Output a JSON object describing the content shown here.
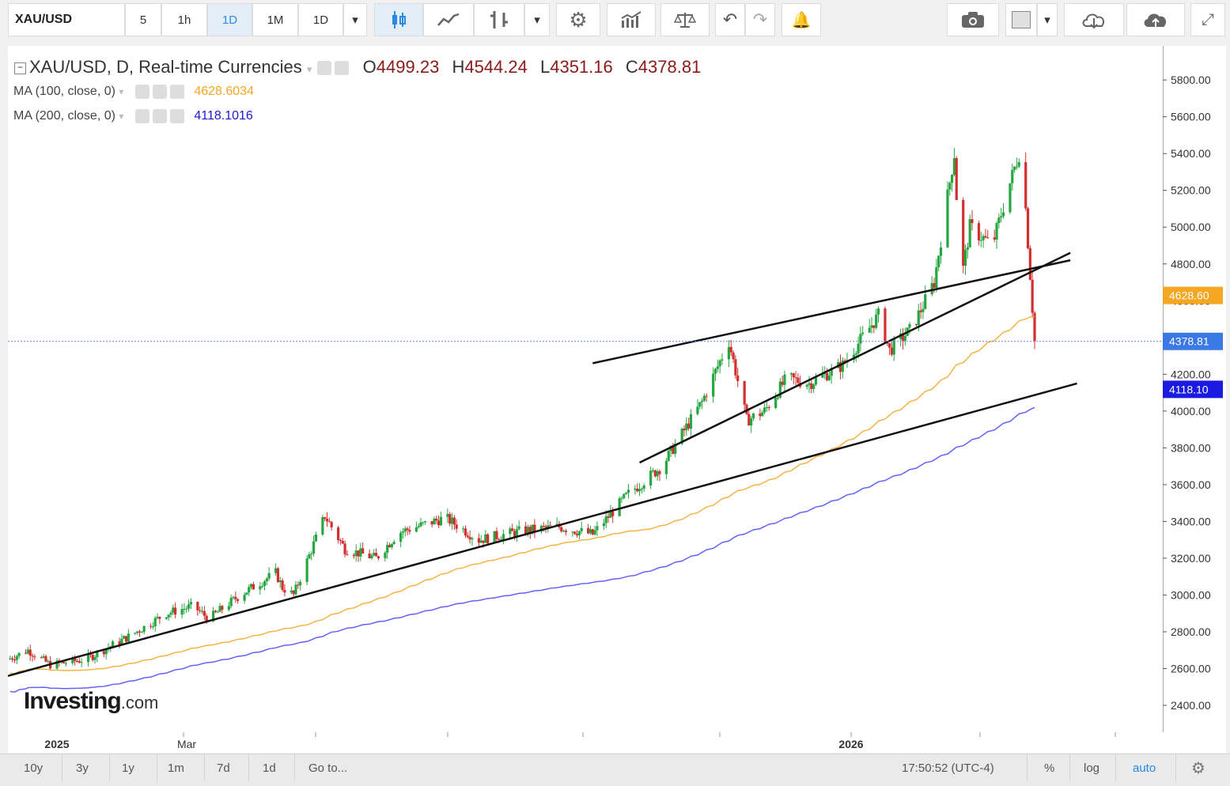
{
  "toolbar": {
    "symbol": "XAU/USD",
    "intervals": [
      "5",
      "1h",
      "1D",
      "1M",
      "1D"
    ],
    "active_interval_index": 2
  },
  "legend": {
    "title": "XAU/USD, D, Real-time Currencies",
    "open_label": "O",
    "open": "4499.23",
    "high_label": "H",
    "high": "4544.24",
    "low_label": "L",
    "low": "4351.16",
    "close_label": "C",
    "close": "4378.81",
    "ma100_label": "MA (100, close, 0)",
    "ma100_value": "4628.6034",
    "ma200_label": "MA (200, close, 0)",
    "ma200_value": "4118.1016"
  },
  "colors": {
    "up": "#26a641",
    "down": "#d32f2f",
    "ma100": "#f5a623",
    "ma200": "#3b3bf5",
    "price_line": "#6b7fe0",
    "trendline": "#111111"
  },
  "price_axis": {
    "ticks": [
      "5800.00",
      "5600.00",
      "5400.00",
      "5200.00",
      "5000.00",
      "4800.00",
      "4600.00",
      "4400.00",
      "4200.00",
      "4000.00",
      "3800.00",
      "3600.00",
      "3400.00",
      "3200.00",
      "3000.00",
      "2800.00",
      "2600.00",
      "2400.00"
    ],
    "current_price_label": "4378.81",
    "ma100_label": "4628.60",
    "ma200_label": "4118.10"
  },
  "time_axis": {
    "labels": [
      "2025",
      "Mar",
      "2026"
    ]
  },
  "watermark": {
    "brand": "Investing",
    "suffix": ".com"
  },
  "bottombar": {
    "ranges": [
      "10y",
      "3y",
      "1y",
      "1m",
      "7d",
      "1d"
    ],
    "goto": "Go to...",
    "clock": "17:50:52 (UTC-4)",
    "percent": "%",
    "log": "log",
    "auto": "auto"
  },
  "chart_data": {
    "type": "candlestick",
    "symbol": "XAU/USD",
    "interval": "D",
    "ylim": [
      2300,
      5900
    ],
    "x_range": [
      "2024-12-01",
      "2026-03-06"
    ],
    "path": [
      [
        "2024-12-01",
        2650
      ],
      [
        "2024-12-10",
        2700
      ],
      [
        "2024-12-20",
        2620
      ],
      [
        "2025-01-05",
        2650
      ],
      [
        "2025-01-25",
        2780
      ],
      [
        "2025-02-10",
        2900
      ],
      [
        "2025-02-22",
        2940
      ],
      [
        "2025-03-01",
        2870
      ],
      [
        "2025-03-15",
        3000
      ],
      [
        "2025-03-31",
        3120
      ],
      [
        "2025-04-03",
        3040
      ],
      [
        "2025-04-08",
        3000
      ],
      [
        "2025-04-22",
        3430
      ],
      [
        "2025-05-01",
        3250
      ],
      [
        "2025-05-15",
        3200
      ],
      [
        "2025-05-25",
        3340
      ],
      [
        "2025-06-15",
        3420
      ],
      [
        "2025-06-30",
        3300
      ],
      [
        "2025-07-20",
        3350
      ],
      [
        "2025-08-05",
        3370
      ],
      [
        "2025-08-20",
        3330
      ],
      [
        "2025-09-05",
        3550
      ],
      [
        "2025-09-20",
        3700
      ],
      [
        "2025-10-08",
        4050
      ],
      [
        "2025-10-20",
        4380
      ],
      [
        "2025-10-28",
        3950
      ],
      [
        "2025-11-05",
        4000
      ],
      [
        "2025-11-15",
        4180
      ],
      [
        "2025-11-25",
        4150
      ],
      [
        "2025-12-10",
        4250
      ],
      [
        "2025-12-26",
        4520
      ],
      [
        "2025-12-31",
        4330
      ],
      [
        "2026-01-10",
        4450
      ],
      [
        "2026-01-20",
        4700
      ],
      [
        "2026-01-29",
        5400
      ],
      [
        "2026-02-01",
        4700
      ],
      [
        "2026-02-05",
        5000
      ],
      [
        "2026-02-15",
        4900
      ],
      [
        "2026-02-22",
        5200
      ],
      [
        "2026-02-27",
        5400
      ],
      [
        "2026-03-02",
        5100
      ],
      [
        "2026-03-06",
        4380
      ]
    ],
    "ma100": {
      "name": "MA (100, close, 0)",
      "last": 4628.6034
    },
    "ma200": {
      "name": "MA (200, close, 0)",
      "last": 4118.1016
    },
    "last_close": 4378.81,
    "x_labels": [
      "2025",
      "Mar",
      "2026"
    ],
    "y_ticks": [
      2400,
      2600,
      2800,
      3000,
      3200,
      3400,
      3600,
      3800,
      4000,
      4200,
      4400,
      4600,
      4800,
      5000,
      5200,
      5400,
      5600,
      5800
    ],
    "trendlines": [
      [
        [
          "2024-12-01",
          2560
        ],
        [
          "2026-03-25",
          4150
        ]
      ],
      [
        [
          "2025-09-10",
          3720
        ],
        [
          "2026-03-22",
          4860
        ]
      ],
      [
        [
          "2025-08-20",
          4260
        ],
        [
          "2026-03-22",
          4820
        ]
      ]
    ],
    "grid": false,
    "legend": "top-left"
  }
}
